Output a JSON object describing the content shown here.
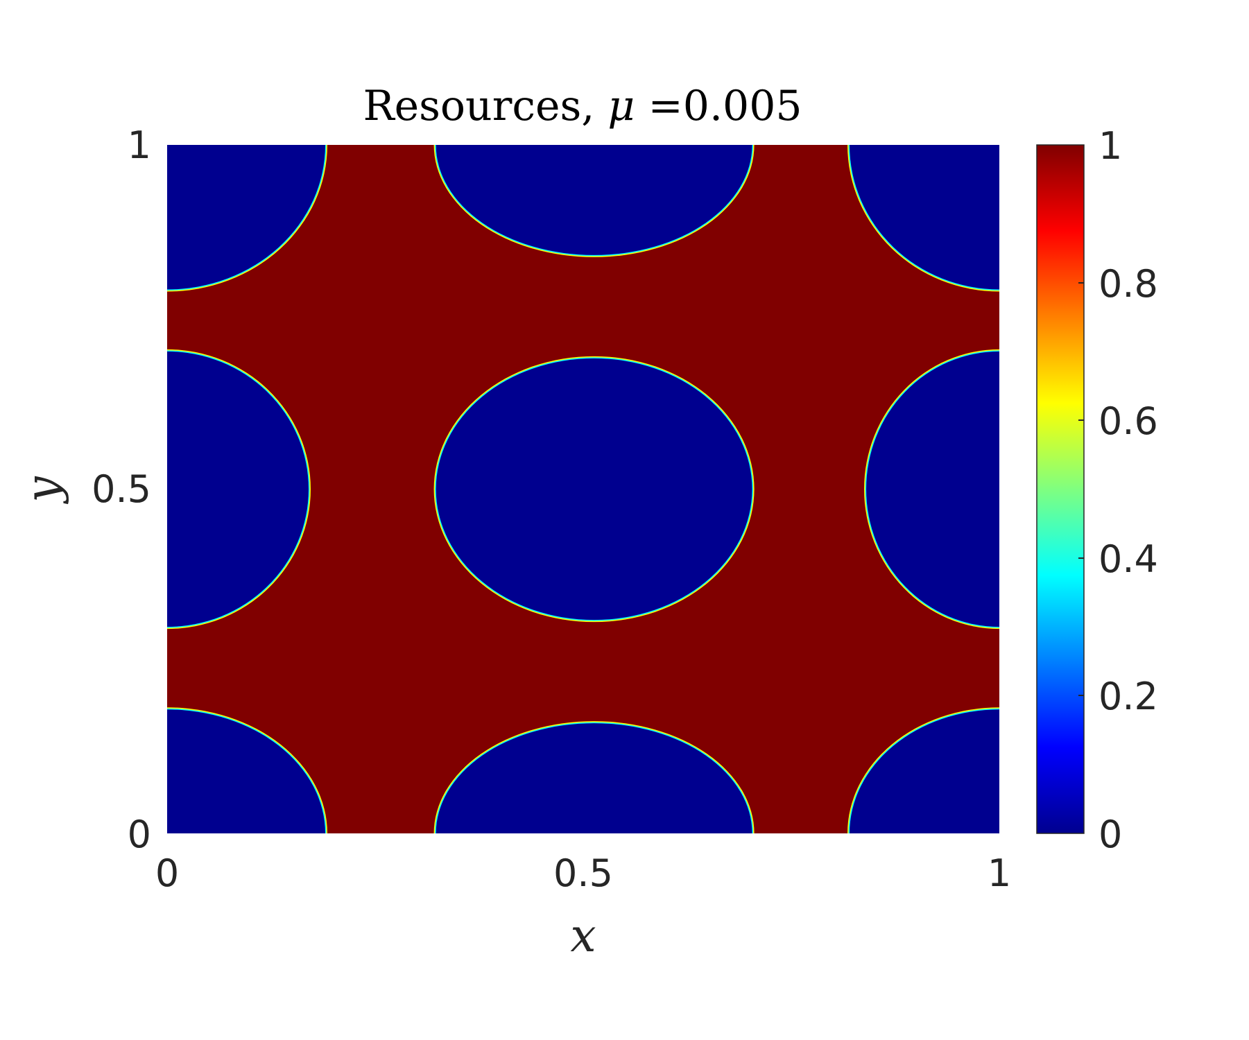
{
  "chart_data": {
    "type": "heatmap",
    "title": {
      "prefix": "Resources, ",
      "symbol": "μ",
      "suffix": " =0.005"
    },
    "xlabel": "x",
    "ylabel": "y",
    "xlim": [
      0,
      1
    ],
    "ylim": [
      0,
      1
    ],
    "x_ticks": [
      "0",
      "0.5",
      "1"
    ],
    "y_ticks": [
      "0",
      "0.5",
      "1"
    ],
    "grid": false,
    "colormap": "jet",
    "colorbar": {
      "range": [
        0,
        1
      ],
      "ticks": [
        "0",
        "0.2",
        "0.4",
        "0.6",
        "0.8",
        "1"
      ]
    },
    "value_min": 0,
    "value_max": 1,
    "description_of_field": "binary field: value 1 in a connected band network, value 0 inside circular patches",
    "patches_value_0": [
      {
        "cx": 0.513,
        "cy": 0.5,
        "rx": 0.19,
        "ry": 0.19
      },
      {
        "cx": 0.0,
        "cy": 0.5,
        "rx": 0.17,
        "ry": 0.2
      },
      {
        "cx": 1.0,
        "cy": 0.5,
        "rx": 0.16,
        "ry": 0.2
      },
      {
        "cx": 0.513,
        "cy": 1.0,
        "rx": 0.19,
        "ry": 0.16
      },
      {
        "cx": 0.513,
        "cy": 0.0,
        "rx": 0.19,
        "ry": 0.16
      },
      {
        "cx": 0.0,
        "cy": 1.0,
        "rx": 0.19,
        "ry": 0.21
      },
      {
        "cx": 1.0,
        "cy": 1.0,
        "rx": 0.18,
        "ry": 0.21
      },
      {
        "cx": 0.0,
        "cy": 0.0,
        "rx": 0.19,
        "ry": 0.18
      },
      {
        "cx": 1.0,
        "cy": 0.0,
        "rx": 0.18,
        "ry": 0.18
      }
    ],
    "background_value": 1
  }
}
